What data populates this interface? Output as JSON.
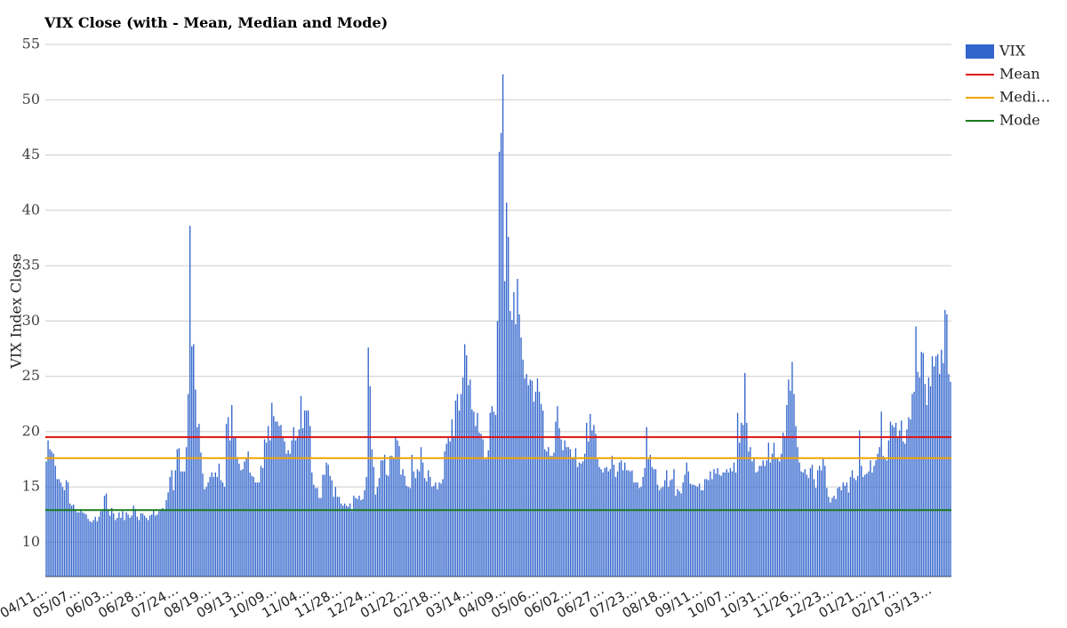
{
  "chart_data": {
    "type": "bar",
    "title": "VIX Close (with - Mean, Median and Mode)",
    "y_label": "VIX Index Close",
    "ylim": [
      6.9,
      55
    ],
    "yticks": [
      10,
      15,
      20,
      25,
      30,
      35,
      40,
      45,
      50,
      55
    ],
    "grid": true,
    "legend": "right",
    "categories": [
      "04/11…",
      null,
      null,
      null,
      null,
      null,
      null,
      null,
      null,
      null,
      null,
      null,
      null,
      null,
      null,
      null,
      null,
      null,
      "05/07…",
      null,
      null,
      null,
      null,
      null,
      null,
      null,
      null,
      null,
      null,
      null,
      null,
      null,
      null,
      null,
      null,
      null,
      "06/03…",
      null,
      null,
      null,
      null,
      null,
      null,
      null,
      null,
      null,
      null,
      null,
      null,
      null,
      null,
      null,
      null,
      null,
      "06/28…",
      null,
      null,
      null,
      null,
      null,
      null,
      null,
      null,
      null,
      null,
      null,
      null,
      null,
      null,
      null,
      null,
      null,
      "07/24…",
      null,
      null,
      null,
      null,
      null,
      null,
      null,
      null,
      null,
      null,
      null,
      null,
      null,
      null,
      null,
      null,
      null,
      "08/19…",
      null,
      null,
      null,
      null,
      null,
      null,
      null,
      null,
      null,
      null,
      null,
      null,
      null,
      null,
      null,
      null,
      null,
      "09/13…",
      null,
      null,
      null,
      null,
      null,
      null,
      null,
      null,
      null,
      null,
      null,
      null,
      null,
      null,
      null,
      null,
      null,
      "10/09…",
      null,
      null,
      null,
      null,
      null,
      null,
      null,
      null,
      null,
      null,
      null,
      null,
      null,
      null,
      null,
      null,
      null,
      "11/04…",
      null,
      null,
      null,
      null,
      null,
      null,
      null,
      null,
      null,
      null,
      null,
      null,
      null,
      null,
      null,
      null,
      null,
      "11/28…",
      null,
      null,
      null,
      null,
      null,
      null,
      null,
      null,
      null,
      null,
      null,
      null,
      null,
      null,
      null,
      null,
      null,
      "12/24…",
      null,
      null,
      null,
      null,
      null,
      null,
      null,
      null,
      null,
      null,
      null,
      null,
      null,
      null,
      null,
      null,
      null,
      "01/22…",
      null,
      null,
      null,
      null,
      null,
      null,
      null,
      null,
      null,
      null,
      null,
      null,
      null,
      null,
      null,
      null,
      null,
      "02/18…",
      null,
      null,
      null,
      null,
      null,
      null,
      null,
      null,
      null,
      null,
      null,
      null,
      null,
      null,
      null,
      null,
      null,
      "03/14…",
      null,
      null,
      null,
      null,
      null,
      null,
      null,
      null,
      null,
      null,
      null,
      null,
      null,
      null,
      null,
      null,
      null,
      "04/09…",
      null,
      null,
      null,
      null,
      null,
      null,
      null,
      null,
      null,
      null,
      null,
      null,
      null,
      null,
      null,
      null,
      null,
      "05/06…",
      null,
      null,
      null,
      null,
      null,
      null,
      null,
      null,
      null,
      null,
      null,
      null,
      null,
      null,
      null,
      null,
      null,
      "06/02…",
      null,
      null,
      null,
      null,
      null,
      null,
      null,
      null,
      null,
      null,
      null,
      null,
      null,
      null,
      null,
      null,
      null,
      "06/27…",
      null,
      null,
      null,
      null,
      null,
      null,
      null,
      null,
      null,
      null,
      null,
      null,
      null,
      null,
      null,
      null,
      null,
      "07/23…",
      null,
      null,
      null,
      null,
      null,
      null,
      null,
      null,
      null,
      null,
      null,
      null,
      null,
      null,
      null,
      null,
      null,
      "08/18…",
      null,
      null,
      null,
      null,
      null,
      null,
      null,
      null,
      null,
      null,
      null,
      null,
      null,
      null,
      null,
      null,
      null,
      "09/11…",
      null,
      null,
      null,
      null,
      null,
      null,
      null,
      null,
      null,
      null,
      null,
      null,
      null,
      null,
      null,
      null,
      null,
      "10/07…",
      null,
      null,
      null,
      null,
      null,
      null,
      null,
      null,
      null,
      null,
      null,
      null,
      null,
      null,
      null,
      null,
      null,
      "10/31…",
      null,
      null,
      null,
      null,
      null,
      null,
      null,
      null,
      null,
      null,
      null,
      null,
      null,
      null,
      null,
      null,
      null,
      "11/26…",
      null,
      null,
      null,
      null,
      null,
      null,
      null,
      null,
      null,
      null,
      null,
      null,
      null,
      null,
      null,
      null,
      null,
      "12/23…",
      null,
      null,
      null,
      null,
      null,
      null,
      null,
      null,
      null,
      null,
      null,
      null,
      null,
      null,
      null,
      null,
      null,
      "01/21…",
      null,
      null,
      null,
      null,
      null,
      null,
      null,
      null,
      null,
      null,
      null,
      null,
      null,
      null,
      null,
      null,
      null,
      "02/17…",
      null,
      null,
      null,
      null,
      null,
      null,
      null,
      null,
      null,
      null,
      null,
      null,
      null,
      null,
      null,
      null,
      null,
      "03/13…",
      null,
      null,
      null,
      null,
      null,
      null,
      null,
      null,
      null,
      null,
      null
    ],
    "series": [
      {
        "name": "VIX",
        "type": "bar",
        "color": "#3366cc",
        "values": [
          17.3,
          19.2,
          18.4,
          18.2,
          18.0,
          16.9,
          15.7,
          15.7,
          15.4,
          15.0,
          14.7,
          15.6,
          15.4,
          13.5,
          13.3,
          13.4,
          13.0,
          12.7,
          12.7,
          13.0,
          12.7,
          12.6,
          12.5,
          12.1,
          11.9,
          11.8,
          12.0,
          12.3,
          11.9,
          12.3,
          12.8,
          12.9,
          14.2,
          14.4,
          12.9,
          12.4,
          13.1,
          12.6,
          12.0,
          12.2,
          12.7,
          12.2,
          12.8,
          12.0,
          12.7,
          12.5,
          12.2,
          12.4,
          13.3,
          13.0,
          12.3,
          12.0,
          12.6,
          12.6,
          12.4,
          12.2,
          12.0,
          12.4,
          12.5,
          12.9,
          12.4,
          12.5,
          12.8,
          12.9,
          13.1,
          12.9,
          13.8,
          14.5,
          15.9,
          16.5,
          14.7,
          16.5,
          18.4,
          18.5,
          16.4,
          16.4,
          16.4,
          18.6,
          23.4,
          38.6,
          27.7,
          27.9,
          23.8,
          20.4,
          20.7,
          18.1,
          16.2,
          14.8,
          15.0,
          15.4,
          15.9,
          16.3,
          15.9,
          16.3,
          15.9,
          17.1,
          15.6,
          15.4,
          15.0,
          20.7,
          21.3,
          19.2,
          22.4,
          19.5,
          19.5,
          17.7,
          17.1,
          16.5,
          16.6,
          17.3,
          17.6,
          18.2,
          16.3,
          16.0,
          15.9,
          15.4,
          15.4,
          15.4,
          16.9,
          16.7,
          19.3,
          19.0,
          20.5,
          19.2,
          22.6,
          21.4,
          20.9,
          20.9,
          20.5,
          20.6,
          19.6,
          19.1,
          18.0,
          18.3,
          18.0,
          19.2,
          20.4,
          19.2,
          19.6,
          20.2,
          23.2,
          20.3,
          21.9,
          21.9,
          21.9,
          20.5,
          16.3,
          15.2,
          14.9,
          14.9,
          14.0,
          14.0,
          16.1,
          16.1,
          17.2,
          17.0,
          16.0,
          15.6,
          14.1,
          15.0,
          14.1,
          14.1,
          13.5,
          13.3,
          13.5,
          13.3,
          13.2,
          13.5,
          12.8,
          14.2,
          14.0,
          13.9,
          14.2,
          13.8,
          13.9,
          14.7,
          15.9,
          27.6,
          24.1,
          18.4,
          16.8,
          14.3,
          15.0,
          15.8,
          17.4,
          17.4,
          17.9,
          16.1,
          16.0,
          17.8,
          17.8,
          17.6,
          19.5,
          19.2,
          18.7,
          16.1,
          16.6,
          16.0,
          15.1,
          15.0,
          14.9,
          17.9,
          16.4,
          15.8,
          16.6,
          16.4,
          18.6,
          17.2,
          15.8,
          15.5,
          16.5,
          15.9,
          15.0,
          15.1,
          15.4,
          14.8,
          15.4,
          15.3,
          15.7,
          18.2,
          18.9,
          19.4,
          19.1,
          21.1,
          19.6,
          22.8,
          23.4,
          21.9,
          23.4,
          24.9,
          27.9,
          26.9,
          24.2,
          24.7,
          22.0,
          21.8,
          20.5,
          21.7,
          19.9,
          19.8,
          19.3,
          17.5,
          17.5,
          18.3,
          21.7,
          22.3,
          21.8,
          21.5,
          30.0,
          45.3,
          47.0,
          52.3,
          33.6,
          40.7,
          37.6,
          30.9,
          30.1,
          32.6,
          29.7,
          33.8,
          30.6,
          28.5,
          26.5,
          24.8,
          25.2,
          24.2,
          24.7,
          24.6,
          22.7,
          23.6,
          24.8,
          23.6,
          22.5,
          21.9,
          18.4,
          18.2,
          18.6,
          17.8,
          17.8,
          18.1,
          20.9,
          22.3,
          20.3,
          19.3,
          18.3,
          19.2,
          18.6,
          18.6,
          18.4,
          17.7,
          17.7,
          18.5,
          16.8,
          17.2,
          17.1,
          17.3,
          18.0,
          20.8,
          19.1,
          21.6,
          20.1,
          20.6,
          19.8,
          17.5,
          16.8,
          16.6,
          16.3,
          16.7,
          16.8,
          16.4,
          16.6,
          17.8,
          17.0,
          15.9,
          16.4,
          17.2,
          17.4,
          16.5,
          17.2,
          16.5,
          16.5,
          16.4,
          16.5,
          15.4,
          15.4,
          15.4,
          14.9,
          15.0,
          15.9,
          16.7,
          20.4,
          17.5,
          17.9,
          16.8,
          16.6,
          16.6,
          15.2,
          14.7,
          14.9,
          15.0,
          15.6,
          16.5,
          15.0,
          15.6,
          15.7,
          16.6,
          14.2,
          14.8,
          14.6,
          14.4,
          15.4,
          16.1,
          17.2,
          16.4,
          15.3,
          15.2,
          15.2,
          15.1,
          15.0,
          15.3,
          14.7,
          14.7,
          15.7,
          15.7,
          15.6,
          16.4,
          15.7,
          16.6,
          16.2,
          16.7,
          16.1,
          16.0,
          16.3,
          16.3,
          16.6,
          16.3,
          16.7,
          16.4,
          17.2,
          16.3,
          21.7,
          19.0,
          20.8,
          20.6,
          25.3,
          20.8,
          18.2,
          18.6,
          17.3,
          17.6,
          16.3,
          16.4,
          16.9,
          16.9,
          17.4,
          16.9,
          17.4,
          19.0,
          17.2,
          18.0,
          19.0,
          17.6,
          17.6,
          17.3,
          18.0,
          19.9,
          19.6,
          22.4,
          24.7,
          23.7,
          26.3,
          23.4,
          20.5,
          18.6,
          17.2,
          16.4,
          16.3,
          16.6,
          16.1,
          15.8,
          16.7,
          17.0,
          15.7,
          14.9,
          16.5,
          16.9,
          16.5,
          17.6,
          16.9,
          14.9,
          14.1,
          13.6,
          14.0,
          14.2,
          13.9,
          14.9,
          15.0,
          14.7,
          15.4,
          15.1,
          15.4,
          14.5,
          15.9,
          16.5,
          15.8,
          15.6,
          16.0,
          20.1,
          16.9,
          15.9,
          16.1,
          16.2,
          16.4,
          17.4,
          16.3,
          16.9,
          17.4,
          18.0,
          18.6,
          21.8,
          17.8,
          17.6,
          17.4,
          19.2,
          20.9,
          20.6,
          20.4,
          20.8,
          19.5,
          20.1,
          21.0,
          19.1,
          18.9,
          20.2,
          21.3,
          21.1,
          23.4,
          23.6,
          29.5,
          25.4,
          24.9,
          27.2,
          27.1,
          24.3,
          22.4,
          24.9,
          24.1,
          26.8,
          25.9,
          26.8,
          27.0,
          25.2,
          27.4,
          26.2,
          31.0,
          30.6,
          25.2,
          24.5
        ]
      },
      {
        "name": "Mean",
        "type": "line",
        "color": "#dd1111",
        "value": 19.5
      },
      {
        "name": "Medi…",
        "type": "line",
        "color": "#f4a300",
        "value": 17.6
      },
      {
        "name": "Mode",
        "type": "line",
        "color": "#1a7a1a",
        "value": 12.9
      }
    ]
  }
}
